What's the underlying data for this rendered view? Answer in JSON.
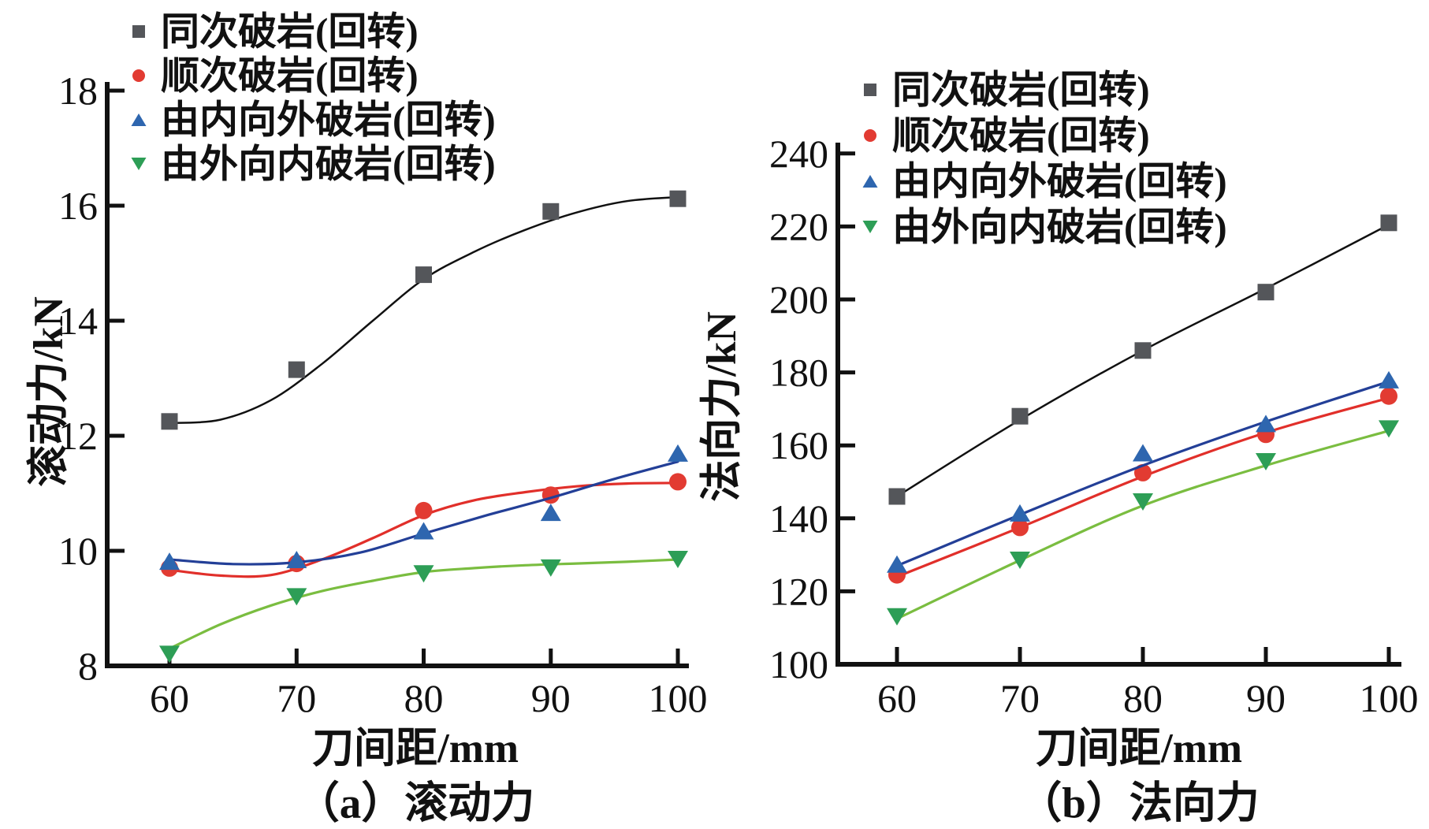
{
  "figure": {
    "background": "#ffffff",
    "axis_color": "#111111"
  },
  "chart_data": [
    {
      "id": "a",
      "type": "line",
      "caption": "（a）滚动力",
      "xlabel": "刀间距/mm",
      "ylabel": "滚动力/kN",
      "xlim": [
        60,
        100
      ],
      "ylim": [
        8,
        18
      ],
      "xticks": [
        60,
        70,
        80,
        90,
        100
      ],
      "yticks": [
        8,
        10,
        12,
        14,
        16,
        18
      ],
      "grid": false,
      "legend_position": "top-left",
      "x": [
        60,
        70,
        80,
        90,
        100
      ],
      "series": [
        {
          "name": "同次破岩(回转)",
          "marker": "square",
          "marker_color": "#54565a",
          "line_color": "#111111",
          "values": [
            12.25,
            13.15,
            14.8,
            15.9,
            16.12
          ],
          "fit_line": [
            [
              60,
              12.22
            ],
            [
              64,
              12.28
            ],
            [
              68,
              12.62
            ],
            [
              72,
              13.25
            ],
            [
              76,
              14.0
            ],
            [
              80,
              14.72
            ],
            [
              84,
              15.2
            ],
            [
              88,
              15.58
            ],
            [
              92,
              15.88
            ],
            [
              96,
              16.08
            ],
            [
              100,
              16.15
            ]
          ]
        },
        {
          "name": "顺次破岩(回转)",
          "marker": "circle",
          "marker_color": "#e23b32",
          "line_color": "#e12f2a",
          "values": [
            9.7,
            9.78,
            10.7,
            10.97,
            11.2
          ],
          "fit_line": [
            [
              60,
              9.67
            ],
            [
              64,
              9.57
            ],
            [
              68,
              9.58
            ],
            [
              72,
              9.85
            ],
            [
              76,
              10.22
            ],
            [
              80,
              10.62
            ],
            [
              84,
              10.88
            ],
            [
              88,
              11.02
            ],
            [
              92,
              11.12
            ],
            [
              96,
              11.17
            ],
            [
              100,
              11.18
            ]
          ]
        },
        {
          "name": "由内向外破岩(回转)",
          "marker": "triangle-up",
          "marker_color": "#2e66af",
          "line_color": "#233f97",
          "values": [
            9.82,
            9.85,
            10.35,
            10.67,
            11.7
          ],
          "fit_line": [
            [
              60,
              9.85
            ],
            [
              65,
              9.77
            ],
            [
              70,
              9.8
            ],
            [
              75,
              9.97
            ],
            [
              80,
              10.3
            ],
            [
              85,
              10.62
            ],
            [
              90,
              10.92
            ],
            [
              95,
              11.25
            ],
            [
              100,
              11.55
            ]
          ]
        },
        {
          "name": "由外向内破岩(回转)",
          "marker": "triangle-down",
          "marker_color": "#2d9e56",
          "line_color": "#7abd40",
          "values": [
            8.2,
            9.2,
            9.6,
            9.7,
            9.85
          ],
          "fit_line": [
            [
              60,
              8.3
            ],
            [
              64,
              8.72
            ],
            [
              68,
              9.05
            ],
            [
              72,
              9.3
            ],
            [
              76,
              9.48
            ],
            [
              80,
              9.63
            ],
            [
              84,
              9.7
            ],
            [
              88,
              9.75
            ],
            [
              92,
              9.78
            ],
            [
              96,
              9.81
            ],
            [
              100,
              9.85
            ]
          ]
        }
      ]
    },
    {
      "id": "b",
      "type": "line",
      "caption": "（b）法向力",
      "xlabel": "刀间距/mm",
      "ylabel": "法向力/kN",
      "xlim": [
        60,
        100
      ],
      "ylim": [
        100,
        240
      ],
      "xticks": [
        60,
        70,
        80,
        90,
        100
      ],
      "yticks": [
        100,
        120,
        140,
        160,
        180,
        200,
        220,
        240
      ],
      "grid": false,
      "legend_position": "top-left",
      "x": [
        60,
        70,
        80,
        90,
        100
      ],
      "series": [
        {
          "name": "同次破岩(回转)",
          "marker": "square",
          "marker_color": "#54565a",
          "line_color": "#111111",
          "values": [
            146,
            168,
            186,
            202,
            221
          ],
          "fit_line": [
            [
              60,
              146
            ],
            [
              70,
              167
            ],
            [
              80,
              186
            ],
            [
              90,
              203
            ],
            [
              100,
              220.5
            ]
          ]
        },
        {
          "name": "顺次破岩(回转)",
          "marker": "circle",
          "marker_color": "#e23b32",
          "line_color": "#e12f2a",
          "values": [
            124.5,
            137.5,
            152.5,
            163,
            173.5
          ],
          "fit_line": [
            [
              60,
              124
            ],
            [
              70,
              137.5
            ],
            [
              80,
              151.5
            ],
            [
              90,
              163.5
            ],
            [
              100,
              173
            ]
          ]
        },
        {
          "name": "由内向外破岩(回转)",
          "marker": "triangle-up",
          "marker_color": "#2e66af",
          "line_color": "#233f97",
          "values": [
            127.5,
            141.5,
            158,
            166,
            178
          ],
          "fit_line": [
            [
              60,
              127
            ],
            [
              70,
              141
            ],
            [
              80,
              154.5
            ],
            [
              90,
              166.5
            ],
            [
              100,
              177.5
            ]
          ]
        },
        {
          "name": "由外向内破岩(回转)",
          "marker": "triangle-down",
          "marker_color": "#2d9e56",
          "line_color": "#7abd40",
          "values": [
            113,
            128.5,
            144.5,
            155.5,
            164.5
          ],
          "fit_line": [
            [
              60,
              112.5
            ],
            [
              70,
              128.5
            ],
            [
              80,
              143.5
            ],
            [
              90,
              154.5
            ],
            [
              100,
              164
            ]
          ]
        }
      ]
    }
  ]
}
